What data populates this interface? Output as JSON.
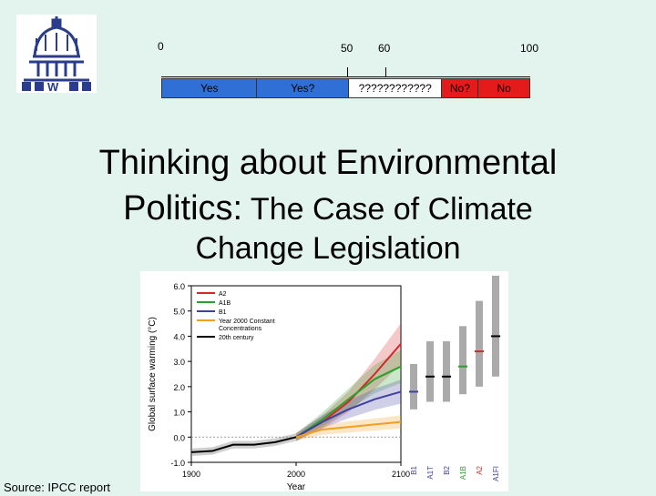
{
  "scale": {
    "ticks": [
      "0",
      "50",
      "60",
      "100"
    ],
    "segments": [
      {
        "label": "Yes",
        "color": "#2f6fd6"
      },
      {
        "label": "Yes?",
        "color": "#2f6fd6"
      },
      {
        "label": "????????????",
        "color": "#ffffff"
      },
      {
        "label": "No?",
        "color": "#e51b1b"
      },
      {
        "label": "No",
        "color": "#e51b1b"
      }
    ]
  },
  "title": {
    "line1": "Thinking about Environmental",
    "line2_a": "Politics:",
    "line2_b": " The Case of Climate",
    "line3": "Change Legislation"
  },
  "source": "Source: IPCC report",
  "chart_data": {
    "type": "line",
    "xlabel": "Year",
    "ylabel": "Global surface warming (°C)",
    "xlim": [
      1900,
      2100
    ],
    "ylim": [
      -1.0,
      6.0
    ],
    "x_ticks": [
      "1900",
      "2000",
      "2100"
    ],
    "y_ticks": [
      "-1.0",
      "0.0",
      "1.0",
      "2.0",
      "3.0",
      "4.0",
      "5.0",
      "6.0"
    ],
    "legend": [
      "A2",
      "A1B",
      "B1",
      "Year 2000 Constant Concentrations",
      "20th century"
    ],
    "legend_placement": "top-left",
    "series": [
      {
        "name": "A2",
        "color": "#d62728",
        "x": [
          2000,
          2025,
          2050,
          2075,
          2100
        ],
        "y": [
          0.0,
          0.6,
          1.4,
          2.5,
          3.7
        ]
      },
      {
        "name": "A1B",
        "color": "#2ca02c",
        "x": [
          2000,
          2025,
          2050,
          2075,
          2100
        ],
        "y": [
          0.0,
          0.7,
          1.5,
          2.3,
          2.8
        ]
      },
      {
        "name": "B1",
        "color": "#4040a0",
        "x": [
          2000,
          2025,
          2050,
          2075,
          2100
        ],
        "y": [
          0.0,
          0.6,
          1.1,
          1.5,
          1.8
        ]
      },
      {
        "name": "Year 2000 Constant Concentrations",
        "color": "#f0a020",
        "x": [
          2000,
          2025,
          2050,
          2075,
          2100
        ],
        "y": [
          0.0,
          0.3,
          0.4,
          0.5,
          0.6
        ]
      },
      {
        "name": "20th century",
        "color": "#000000",
        "x": [
          1900,
          1920,
          1940,
          1960,
          1980,
          2000
        ],
        "y": [
          -0.6,
          -0.55,
          -0.3,
          -0.3,
          -0.2,
          0.0
        ]
      }
    ],
    "bars": [
      {
        "label": "B1",
        "low": 1.1,
        "high": 2.9,
        "best": 1.8,
        "color": "#4040a0"
      },
      {
        "label": "A1T",
        "low": 1.4,
        "high": 3.8,
        "best": 2.4,
        "color": "#000000"
      },
      {
        "label": "B2",
        "low": 1.4,
        "high": 3.8,
        "best": 2.4,
        "color": "#000000"
      },
      {
        "label": "A1B",
        "low": 1.7,
        "high": 4.4,
        "best": 2.8,
        "color": "#2ca02c"
      },
      {
        "label": "A2",
        "low": 2.0,
        "high": 5.4,
        "best": 3.4,
        "color": "#d62728"
      },
      {
        "label": "A1FI",
        "low": 2.4,
        "high": 6.4,
        "best": 4.0,
        "color": "#000000"
      }
    ]
  }
}
